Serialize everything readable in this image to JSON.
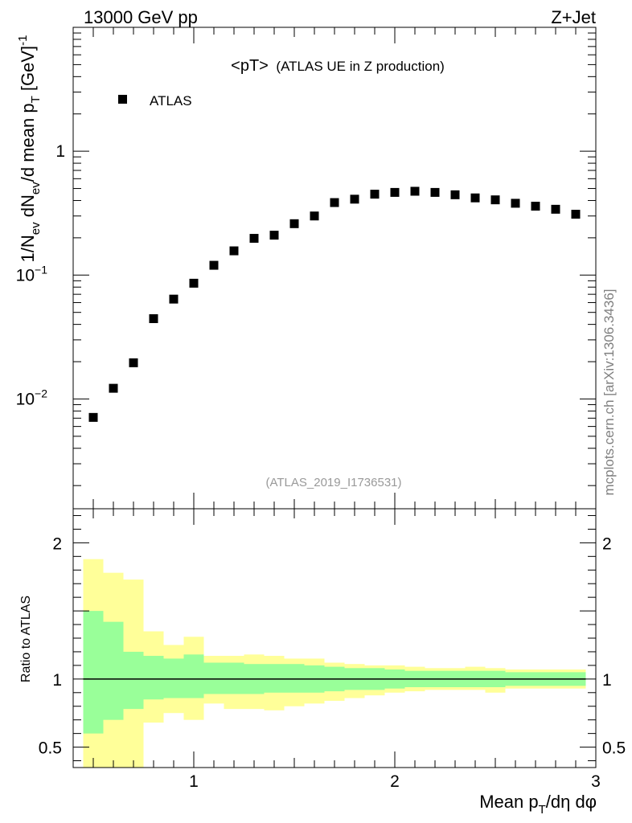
{
  "header": {
    "left": "13000 GeV pp",
    "right": "Z+Jet"
  },
  "plot_title": {
    "main": "<pT>",
    "sub": "(ATLAS UE in Z production)"
  },
  "legend": {
    "label": "ATLAS",
    "placement": "top-left"
  },
  "analysis_id": "(ATLAS_2019_I1736531)",
  "side_text": "mcplots.cern.ch [arXiv:1306.3436]",
  "colors": {
    "band_inner": "#99ff99",
    "band_outer": "#ffff99",
    "marker": "#000000",
    "ratio_line": "#000000"
  },
  "chart_data": [
    {
      "type": "scatter",
      "role": "main",
      "ylabel": "1/N_ev dN_ev/d mean p_T [GeV]^-1",
      "ylabel_parts": {
        "a": "1/N",
        "b": "ev",
        "c": " dN",
        "d": "ev",
        "e": "/d mean p",
        "f": "T",
        "g": " [GeV]",
        "h": "-1"
      },
      "xlim": [
        0.4,
        3.0
      ],
      "ylim": [
        0.0013,
        10
      ],
      "yscale": "log",
      "y_ticks": [
        {
          "value": 1,
          "label": "1"
        },
        {
          "value": 0.1,
          "label": "10",
          "exp": "−1"
        },
        {
          "value": 0.01,
          "label": "10",
          "exp": "−2"
        }
      ],
      "series": [
        {
          "name": "ATLAS",
          "x": [
            0.5,
            0.6,
            0.7,
            0.8,
            0.9,
            1.0,
            1.1,
            1.2,
            1.3,
            1.4,
            1.5,
            1.6,
            1.7,
            1.8,
            1.9,
            2.0,
            2.1,
            2.2,
            2.3,
            2.4,
            2.5,
            2.6,
            2.7,
            2.8,
            2.9
          ],
          "y": [
            0.0071,
            0.0122,
            0.0196,
            0.0445,
            0.064,
            0.086,
            0.12,
            0.157,
            0.198,
            0.21,
            0.26,
            0.3,
            0.385,
            0.41,
            0.45,
            0.465,
            0.475,
            0.465,
            0.445,
            0.42,
            0.405,
            0.38,
            0.36,
            0.34,
            0.31
          ]
        }
      ]
    },
    {
      "type": "area",
      "role": "ratio",
      "ylabel": "Ratio to ATLAS",
      "xlabel": "Mean p_T/dη dφ",
      "xlabel_parts": {
        "a": "Mean p",
        "b": "T",
        "c": "/dη dφ"
      },
      "xlim": [
        0.4,
        3.0
      ],
      "ylim": [
        0.35,
        2.25
      ],
      "x_ticks": [
        {
          "value": 1,
          "label": "1"
        },
        {
          "value": 2,
          "label": "2"
        },
        {
          "value": 3,
          "label": "3"
        }
      ],
      "y_ticks": [
        {
          "value": 2,
          "label": "2"
        },
        {
          "value": 1,
          "label": "1"
        },
        {
          "value": 0.5,
          "label": "0.5"
        }
      ],
      "bin_edges": [
        0.45,
        0.55,
        0.65,
        0.75,
        0.85,
        0.95,
        1.05,
        1.15,
        1.25,
        1.35,
        1.45,
        1.55,
        1.65,
        1.75,
        1.85,
        1.95,
        2.05,
        2.15,
        2.25,
        2.35,
        2.45,
        2.55,
        2.65,
        2.75,
        2.85,
        2.95
      ],
      "ratio_value": 1.0,
      "inner_band": {
        "upper": [
          1.5,
          1.42,
          1.2,
          1.17,
          1.15,
          1.18,
          1.12,
          1.12,
          1.11,
          1.11,
          1.11,
          1.1,
          1.09,
          1.08,
          1.08,
          1.07,
          1.06,
          1.06,
          1.06,
          1.06,
          1.06,
          1.05,
          1.05,
          1.05,
          1.05
        ],
        "lower": [
          0.6,
          0.7,
          0.78,
          0.85,
          0.86,
          0.86,
          0.89,
          0.89,
          0.89,
          0.9,
          0.9,
          0.9,
          0.91,
          0.92,
          0.92,
          0.93,
          0.94,
          0.94,
          0.94,
          0.94,
          0.94,
          0.95,
          0.95,
          0.95,
          0.95
        ]
      },
      "outer_band": {
        "upper": [
          1.88,
          1.78,
          1.73,
          1.35,
          1.25,
          1.31,
          1.17,
          1.17,
          1.18,
          1.17,
          1.15,
          1.15,
          1.12,
          1.11,
          1.1,
          1.1,
          1.09,
          1.08,
          1.08,
          1.09,
          1.08,
          1.07,
          1.07,
          1.07,
          1.07
        ],
        "lower": [
          0.1,
          0.1,
          0.1,
          0.68,
          0.75,
          0.7,
          0.82,
          0.78,
          0.78,
          0.77,
          0.8,
          0.82,
          0.84,
          0.86,
          0.88,
          0.9,
          0.91,
          0.92,
          0.92,
          0.92,
          0.9,
          0.93,
          0.93,
          0.93,
          0.93
        ]
      }
    }
  ]
}
